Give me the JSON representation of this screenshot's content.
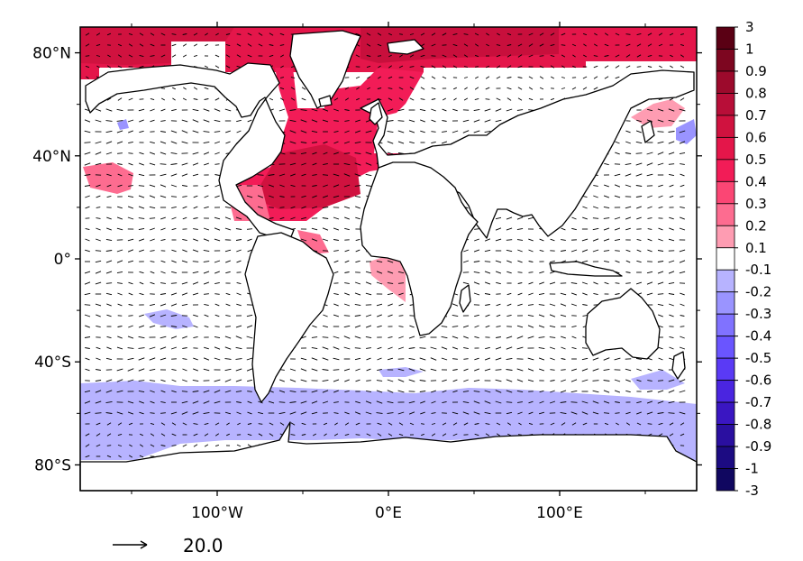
{
  "map": {
    "lat_ticks": [
      {
        "value": 80,
        "label": "80°N"
      },
      {
        "value": 40,
        "label": "40°N"
      },
      {
        "value": 0,
        "label": "0°"
      },
      {
        "value": -40,
        "label": "40°S"
      },
      {
        "value": -80,
        "label": "80°S"
      }
    ],
    "lon_ticks": [
      {
        "value": -100,
        "label": "100°W"
      },
      {
        "value": 0,
        "label": "0°E"
      },
      {
        "value": 100,
        "label": "100°E"
      }
    ],
    "lon_range": [
      -180,
      180
    ],
    "lat_range": [
      -90,
      90
    ],
    "reference_vector": {
      "label": "20.0"
    },
    "colorbar": {
      "labels": [
        "3",
        "1",
        "0.9",
        "0.8",
        "0.7",
        "0.6",
        "0.5",
        "0.4",
        "0.3",
        "0.2",
        "0.1",
        "-0.1",
        "-0.2",
        "-0.3",
        "-0.4",
        "-0.5",
        "-0.6",
        "-0.7",
        "-0.8",
        "-0.9",
        "-1",
        "-3"
      ],
      "colors": [
        "#5a0014",
        "#7d0620",
        "#9c0a2c",
        "#b80e38",
        "#d0123f",
        "#e4164a",
        "#f21c57",
        "#fb4674",
        "#fd6c90",
        "#fe9cb2",
        "#ffffff",
        "#b7b3ff",
        "#9a94ff",
        "#8072ff",
        "#6a55ff",
        "#5a3af5",
        "#4a25e0",
        "#3a16c2",
        "#2a0fa0",
        "#1c0b82",
        "#100760"
      ]
    }
  }
}
